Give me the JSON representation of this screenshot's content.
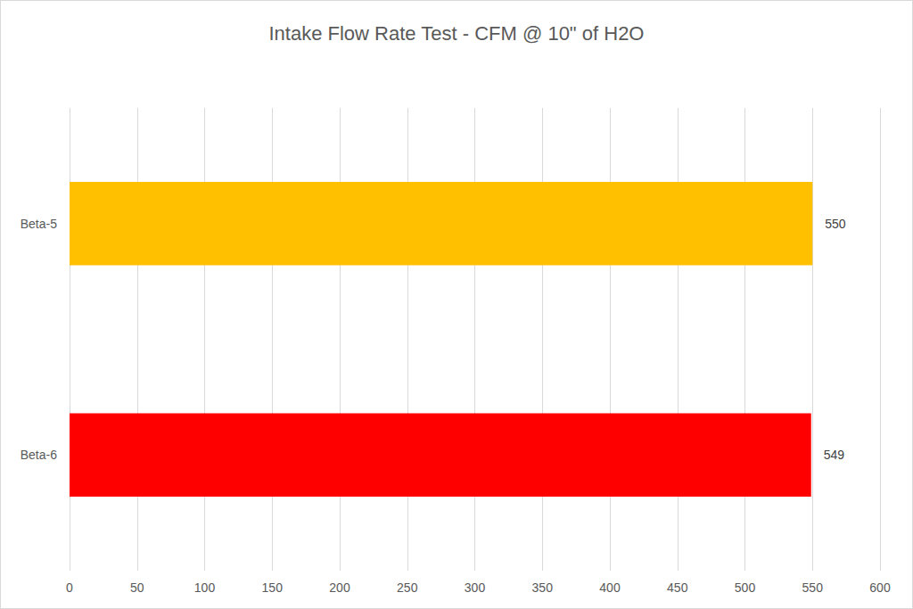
{
  "chart_data": {
    "type": "bar",
    "title": "Intake Flow Rate Test - CFM @ 10\" of H2O",
    "categories": [
      "Beta-5",
      "Beta-6"
    ],
    "values": [
      550,
      549
    ],
    "colors": [
      "#ffc000",
      "#ff0000"
    ],
    "orientation": "horizontal",
    "xlim": [
      0,
      600
    ],
    "xticks": [
      0,
      50,
      100,
      150,
      200,
      250,
      300,
      350,
      400,
      450,
      500,
      550,
      600
    ],
    "grid": true,
    "data_labels": true
  }
}
